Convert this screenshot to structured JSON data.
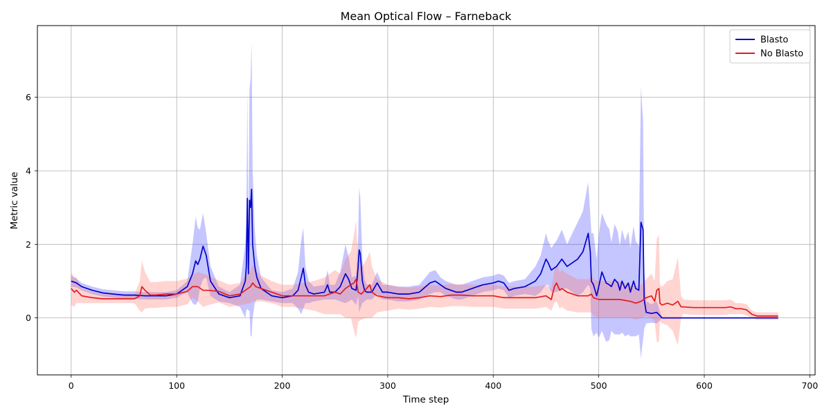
{
  "chart_data": {
    "type": "line",
    "title": "Mean Optical Flow – Farneback",
    "xlabel": "Time step",
    "ylabel": "Metric value",
    "xlim": [
      -32,
      705
    ],
    "ylim": [
      -1.55,
      7.95
    ],
    "xticks": [
      0,
      100,
      200,
      300,
      400,
      500,
      600,
      700
    ],
    "yticks": [
      0,
      2,
      4,
      6
    ],
    "grid": true,
    "legend_position": "top-right",
    "series": [
      {
        "name": "Blasto",
        "color": "#0000cc",
        "fill_color": "#4b4bff",
        "x": [
          0,
          5,
          10,
          20,
          30,
          40,
          50,
          60,
          70,
          80,
          90,
          100,
          110,
          115,
          118,
          120,
          122,
          125,
          128,
          132,
          140,
          150,
          160,
          165,
          166,
          167,
          168,
          169,
          170,
          171,
          172,
          174,
          176,
          180,
          190,
          200,
          210,
          215,
          218,
          220,
          222,
          225,
          230,
          240,
          243,
          245,
          250,
          255,
          260,
          263,
          266,
          270,
          272,
          273,
          274,
          276,
          278,
          280,
          285,
          290,
          295,
          300,
          310,
          320,
          330,
          340,
          345,
          350,
          355,
          360,
          365,
          370,
          380,
          390,
          400,
          405,
          410,
          415,
          420,
          430,
          440,
          445,
          450,
          452,
          455,
          460,
          465,
          470,
          475,
          480,
          485,
          490,
          492,
          493,
          495,
          498,
          500,
          503,
          507,
          510,
          512,
          515,
          518,
          520,
          522,
          525,
          528,
          530,
          533,
          535,
          538,
          540,
          541,
          542,
          543,
          545,
          550,
          555,
          560,
          600,
          650,
          670
        ],
        "y": [
          1.0,
          0.95,
          0.85,
          0.75,
          0.68,
          0.65,
          0.62,
          0.62,
          0.6,
          0.6,
          0.6,
          0.65,
          0.85,
          1.2,
          1.55,
          1.45,
          1.6,
          1.95,
          1.7,
          1.0,
          0.65,
          0.55,
          0.6,
          1.0,
          1.4,
          3.25,
          1.2,
          3.2,
          3.0,
          3.5,
          2.0,
          1.4,
          1.1,
          0.8,
          0.6,
          0.55,
          0.6,
          0.75,
          1.1,
          1.35,
          0.9,
          0.7,
          0.65,
          0.7,
          0.9,
          0.7,
          0.7,
          0.85,
          1.2,
          1.05,
          0.8,
          0.75,
          1.4,
          1.85,
          1.75,
          1.0,
          0.75,
          0.7,
          0.7,
          0.95,
          0.7,
          0.7,
          0.65,
          0.65,
          0.7,
          0.95,
          1.0,
          0.9,
          0.8,
          0.75,
          0.7,
          0.7,
          0.8,
          0.9,
          0.95,
          1.0,
          0.95,
          0.75,
          0.8,
          0.85,
          1.0,
          1.2,
          1.6,
          1.5,
          1.3,
          1.4,
          1.6,
          1.4,
          1.5,
          1.6,
          1.8,
          2.3,
          1.8,
          1.0,
          0.9,
          0.6,
          0.85,
          1.25,
          0.95,
          0.9,
          0.85,
          1.05,
          0.95,
          0.75,
          1.0,
          0.8,
          0.95,
          0.7,
          1.0,
          0.8,
          0.75,
          2.6,
          2.5,
          2.4,
          0.5,
          0.15,
          0.12,
          0.15,
          0.0,
          0.0,
          0.0,
          0.0
        ],
        "std": [
          0.15,
          0.12,
          0.1,
          0.1,
          0.1,
          0.1,
          0.1,
          0.1,
          0.1,
          0.1,
          0.1,
          0.1,
          0.15,
          0.8,
          1.2,
          1.0,
          0.8,
          0.9,
          0.6,
          0.4,
          0.2,
          0.15,
          0.3,
          1.0,
          1.2,
          3.0,
          1.0,
          3.0,
          3.5,
          4.0,
          2.0,
          1.0,
          0.6,
          0.3,
          0.15,
          0.15,
          0.2,
          0.5,
          1.0,
          1.1,
          0.5,
          0.3,
          0.2,
          0.2,
          0.4,
          0.2,
          0.2,
          0.4,
          0.8,
          0.6,
          0.3,
          0.4,
          0.8,
          1.7,
          1.5,
          0.6,
          0.3,
          0.2,
          0.2,
          0.3,
          0.2,
          0.2,
          0.2,
          0.2,
          0.2,
          0.3,
          0.3,
          0.2,
          0.2,
          0.2,
          0.2,
          0.2,
          0.2,
          0.2,
          0.2,
          0.2,
          0.2,
          0.2,
          0.2,
          0.2,
          0.4,
          0.5,
          0.7,
          0.6,
          0.6,
          0.7,
          0.8,
          0.6,
          0.8,
          1.0,
          1.1,
          1.4,
          1.0,
          1.3,
          1.4,
          1.0,
          1.4,
          1.6,
          1.6,
          1.5,
          1.2,
          1.5,
          1.4,
          1.2,
          1.4,
          1.3,
          1.4,
          1.2,
          1.5,
          1.3,
          1.2,
          3.7,
          3.3,
          3.0,
          0.8,
          0.3,
          0.25,
          0.3,
          0.0,
          0.0,
          0.0,
          0.0
        ]
      },
      {
        "name": "No Blasto",
        "color": "#e31a1c",
        "fill_color": "#ff7a70",
        "x": [
          0,
          3,
          5,
          10,
          20,
          30,
          40,
          50,
          60,
          65,
          67,
          70,
          75,
          80,
          90,
          100,
          110,
          115,
          120,
          125,
          130,
          140,
          150,
          160,
          170,
          172,
          175,
          180,
          190,
          200,
          210,
          220,
          230,
          240,
          245,
          250,
          255,
          260,
          265,
          268,
          270,
          272,
          275,
          280,
          283,
          285,
          290,
          300,
          310,
          320,
          330,
          340,
          350,
          360,
          370,
          380,
          390,
          400,
          410,
          420,
          430,
          440,
          450,
          455,
          458,
          460,
          463,
          465,
          470,
          480,
          490,
          493,
          495,
          500,
          510,
          520,
          530,
          535,
          540,
          545,
          550,
          553,
          555,
          557,
          558,
          560,
          565,
          570,
          575,
          578,
          580,
          590,
          600,
          610,
          620,
          625,
          630,
          635,
          640,
          645,
          650,
          660,
          670
        ],
        "y": [
          0.8,
          0.7,
          0.75,
          0.6,
          0.55,
          0.52,
          0.52,
          0.52,
          0.52,
          0.6,
          0.85,
          0.75,
          0.62,
          0.62,
          0.65,
          0.65,
          0.72,
          0.85,
          0.85,
          0.75,
          0.75,
          0.72,
          0.6,
          0.65,
          0.85,
          0.95,
          0.85,
          0.8,
          0.7,
          0.6,
          0.6,
          0.6,
          0.6,
          0.6,
          0.65,
          0.7,
          0.65,
          0.8,
          0.9,
          0.95,
          1.05,
          0.7,
          0.65,
          0.8,
          0.9,
          0.7,
          0.6,
          0.55,
          0.55,
          0.52,
          0.55,
          0.6,
          0.58,
          0.62,
          0.62,
          0.6,
          0.6,
          0.6,
          0.55,
          0.55,
          0.55,
          0.55,
          0.6,
          0.5,
          0.85,
          0.95,
          0.75,
          0.8,
          0.7,
          0.6,
          0.6,
          0.65,
          0.55,
          0.5,
          0.5,
          0.5,
          0.45,
          0.4,
          0.45,
          0.55,
          0.6,
          0.45,
          0.75,
          0.8,
          0.4,
          0.35,
          0.4,
          0.35,
          0.45,
          0.3,
          0.3,
          0.28,
          0.28,
          0.28,
          0.28,
          0.3,
          0.25,
          0.25,
          0.22,
          0.1,
          0.05,
          0.05,
          0.05
        ],
        "std": [
          0.45,
          0.4,
          0.35,
          0.2,
          0.15,
          0.12,
          0.12,
          0.12,
          0.12,
          0.4,
          0.7,
          0.5,
          0.35,
          0.35,
          0.35,
          0.35,
          0.35,
          0.3,
          0.4,
          0.45,
          0.4,
          0.3,
          0.3,
          0.3,
          0.45,
          0.5,
          0.4,
          0.35,
          0.3,
          0.3,
          0.3,
          0.35,
          0.4,
          0.5,
          0.55,
          0.6,
          0.55,
          0.8,
          0.9,
          1.3,
          1.6,
          0.8,
          0.7,
          0.8,
          0.9,
          0.7,
          0.45,
          0.35,
          0.3,
          0.3,
          0.3,
          0.3,
          0.3,
          0.3,
          0.3,
          0.3,
          0.3,
          0.3,
          0.3,
          0.3,
          0.3,
          0.3,
          0.3,
          0.3,
          0.45,
          0.5,
          0.5,
          0.5,
          0.5,
          0.45,
          0.45,
          0.5,
          0.5,
          0.5,
          0.5,
          0.5,
          0.45,
          0.45,
          0.45,
          0.5,
          0.6,
          0.55,
          1.4,
          1.45,
          0.5,
          0.5,
          0.6,
          0.7,
          1.2,
          0.3,
          0.2,
          0.2,
          0.2,
          0.2,
          0.2,
          0.2,
          0.15,
          0.15,
          0.15,
          0.1,
          0.1,
          0.1,
          0.1
        ]
      }
    ]
  }
}
